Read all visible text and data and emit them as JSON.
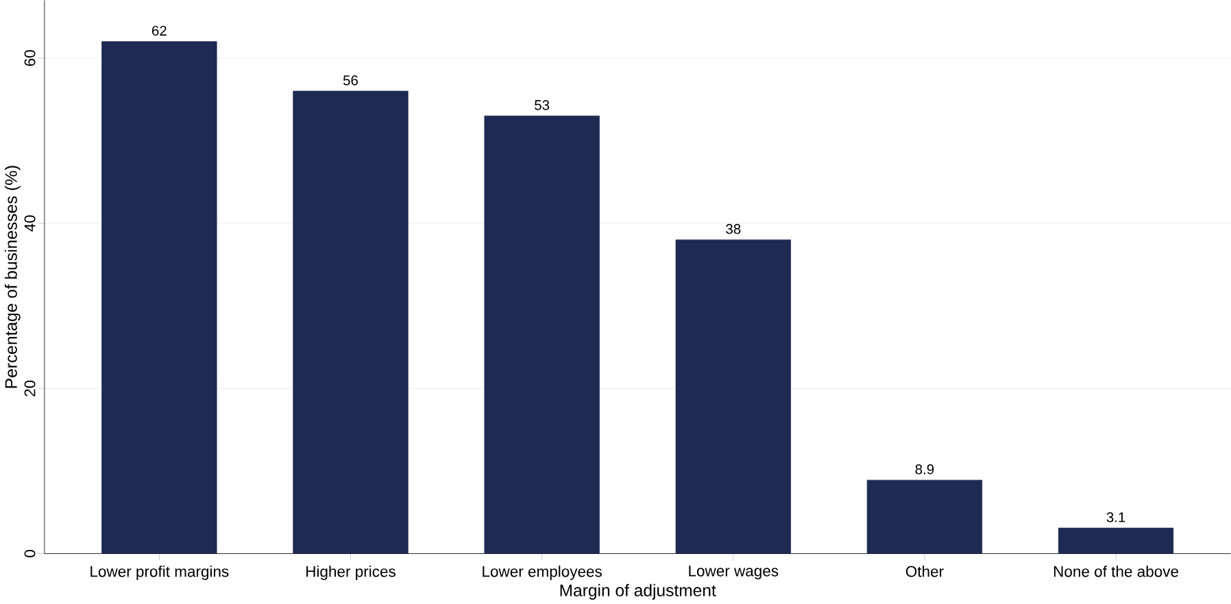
{
  "chart_data": {
    "type": "bar",
    "xlabel": "Margin of adjustment",
    "ylabel": "Percentage of businesses (%)",
    "categories": [
      "Lower profit margins",
      "Higher prices",
      "Lower employees",
      "Lower wages",
      "Other",
      "None of the above"
    ],
    "values": [
      62,
      56,
      53,
      38,
      8.9,
      3.1
    ],
    "color": "#1f2a52",
    "ylim": [
      0,
      67
    ],
    "yticks": [
      0,
      20,
      40,
      60
    ],
    "grid": "y",
    "data_labels": true
  }
}
